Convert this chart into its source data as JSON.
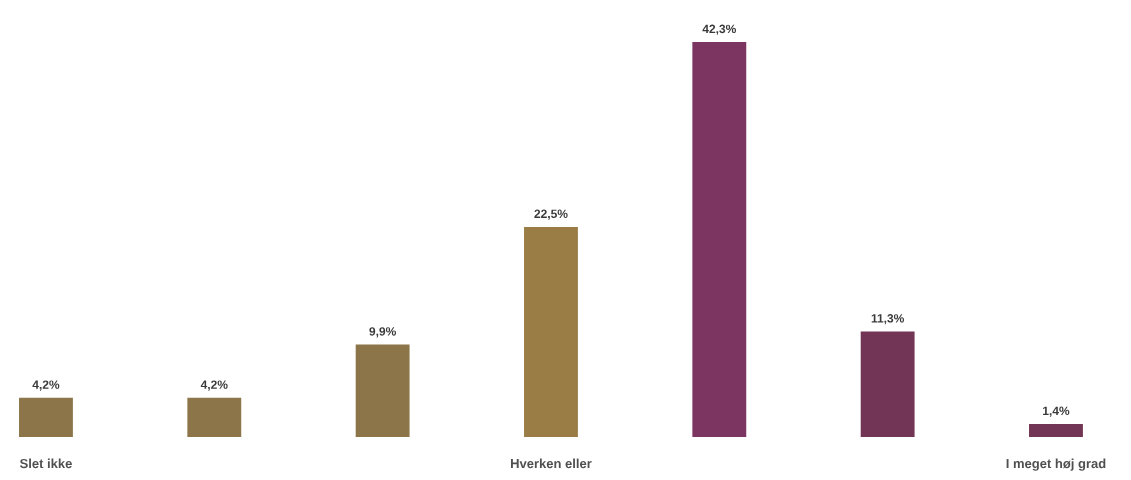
{
  "chart_data": {
    "type": "bar",
    "categories": [
      "Slet ikke",
      null,
      null,
      "Hverken eller",
      null,
      null,
      "I meget høj grad"
    ],
    "values": [
      4.2,
      4.2,
      9.9,
      22.5,
      42.3,
      11.3,
      1.4
    ],
    "colors": [
      "#8b7549",
      "#8b7549",
      "#8b7549",
      "#9a7d45",
      "#7b3560",
      "#723556",
      "#733555"
    ],
    "value_labels": [
      "4,2%",
      "4,2%",
      "9,9%",
      "22,5%",
      "42,3%",
      "11,3%",
      "1,4%"
    ]
  }
}
